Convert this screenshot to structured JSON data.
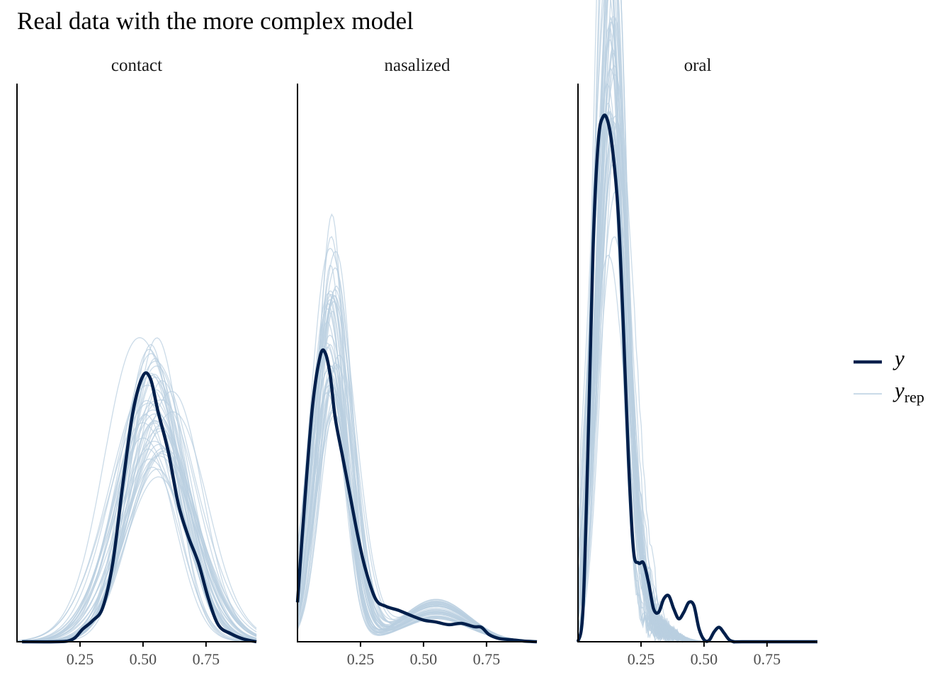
{
  "chart_data": {
    "type": "line",
    "title": "Real data with the more complex model",
    "xlim": [
      0,
      0.95
    ],
    "x_ticks": [
      "0.25",
      "0.50",
      "0.75"
    ],
    "x_tick_values": [
      0.25,
      0.5,
      0.75
    ],
    "legend": {
      "placement": "right",
      "entries": [
        {
          "label": "y",
          "subscript": "",
          "color": "#011f4b"
        },
        {
          "label": "y",
          "subscript": "rep",
          "color": "#b9cfe0"
        }
      ]
    },
    "panels": [
      {
        "label": "contact",
        "y": {
          "x": [
            0.02,
            0.15,
            0.2,
            0.23,
            0.26,
            0.3,
            0.34,
            0.38,
            0.42,
            0.46,
            0.5,
            0.53,
            0.56,
            0.6,
            0.64,
            0.68,
            0.72,
            0.76,
            0.8,
            0.85,
            0.9,
            0.95
          ],
          "y": [
            0.0,
            0.0,
            0.1,
            0.6,
            1.9,
            3.2,
            5.2,
            12.0,
            24.0,
            35.0,
            40.5,
            40.0,
            35.0,
            29.0,
            21.0,
            16.0,
            12.0,
            6.5,
            2.5,
            1.2,
            0.4,
            0.0
          ]
        },
        "y_rep_peak": {
          "center": 0.55,
          "height": 30.0,
          "spread": 0.13
        }
      },
      {
        "label": "nasalized",
        "y": {
          "x": [
            0.0,
            0.03,
            0.06,
            0.09,
            0.11,
            0.13,
            0.15,
            0.18,
            0.21,
            0.24,
            0.27,
            0.31,
            0.35,
            0.4,
            0.45,
            0.5,
            0.55,
            0.6,
            0.65,
            0.7,
            0.73,
            0.76,
            0.8,
            0.85,
            0.9,
            0.95
          ],
          "y": [
            6.0,
            22.0,
            36.0,
            43.5,
            44.0,
            40.5,
            34.0,
            28.0,
            22.0,
            16.0,
            11.0,
            6.5,
            5.4,
            4.8,
            4.0,
            3.3,
            3.0,
            2.6,
            2.8,
            2.3,
            2.2,
            1.1,
            0.5,
            0.3,
            0.1,
            0.0
          ]
        },
        "y_rep_peak": {
          "center": 0.14,
          "height": 40.0,
          "spread": 0.07
        }
      },
      {
        "label": "oral",
        "y": {
          "x": [
            0.0,
            0.02,
            0.04,
            0.06,
            0.08,
            0.1,
            0.12,
            0.14,
            0.16,
            0.18,
            0.2,
            0.22,
            0.24,
            0.26,
            0.28,
            0.3,
            0.32,
            0.34,
            0.36,
            0.38,
            0.4,
            0.42,
            0.44,
            0.46,
            0.48,
            0.5,
            0.52,
            0.54,
            0.56,
            0.58,
            0.6,
            0.62,
            0.65,
            0.95
          ],
          "y": [
            0.0,
            5.0,
            30.0,
            60.0,
            76.0,
            80.0,
            79.0,
            74.0,
            65.0,
            48.0,
            28.0,
            14.0,
            12.0,
            12.0,
            9.0,
            5.0,
            4.5,
            6.5,
            7.0,
            5.0,
            3.5,
            4.5,
            6.0,
            5.5,
            2.0,
            0.3,
            0.2,
            1.5,
            2.2,
            1.3,
            0.3,
            0.0,
            0.0,
            0.0
          ]
        },
        "y_rep_peak": {
          "center": 0.13,
          "height": 77.0,
          "spread": 0.06
        }
      }
    ]
  }
}
